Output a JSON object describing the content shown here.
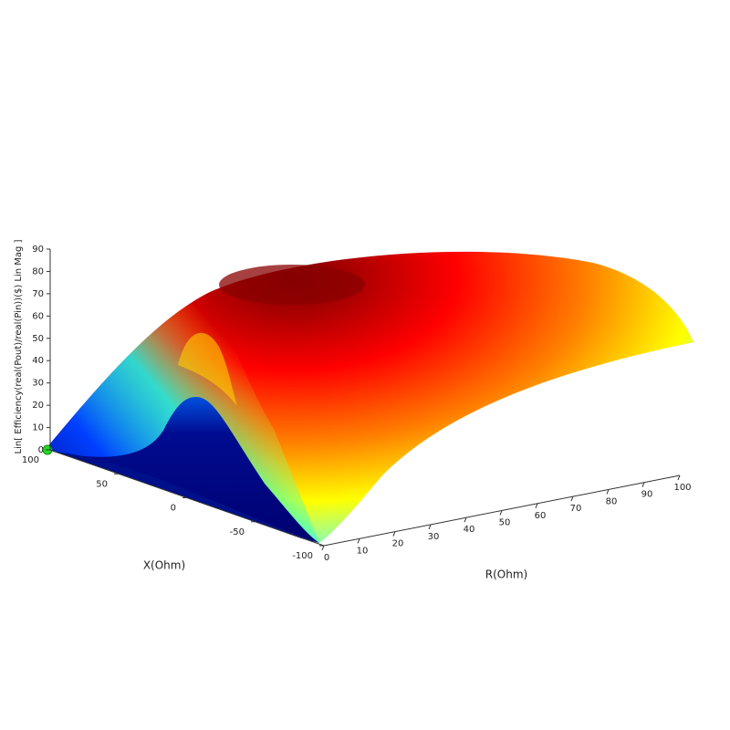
{
  "chart_data": {
    "type": "surface",
    "xlabel": "R(Ohm)",
    "ylabel": "X(Ohm)",
    "zlabel": "Lin[ Efficiency(real(Pout)/real(Pin))($) Lin Mag ]",
    "xlim": [
      0,
      100
    ],
    "xticks": [
      0,
      10,
      20,
      30,
      40,
      50,
      60,
      70,
      80,
      90,
      100
    ],
    "ylim": [
      -100,
      100
    ],
    "yticks": [
      100,
      50,
      0,
      -50,
      -100
    ],
    "zlim": [
      0,
      90
    ],
    "zticks": [
      0,
      10,
      20,
      30,
      40,
      50,
      60,
      70,
      80,
      90
    ]
  }
}
